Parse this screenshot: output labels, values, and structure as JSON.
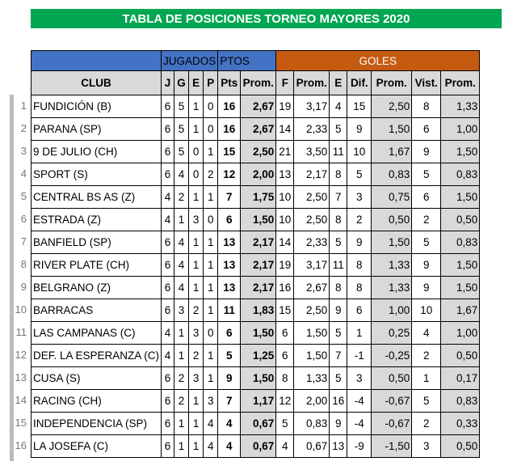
{
  "title": "TABLA DE POSICIONES TORNEO MAYORES 2020",
  "group_headers": {
    "jugados": "JUGADOS",
    "ptos": "PTOS",
    "goles": "GOLES"
  },
  "columns": [
    "CLUB",
    "J",
    "G",
    "E",
    "P",
    "Pts",
    "Prom.",
    "F",
    "Prom.",
    "E",
    "Dif.",
    "Prom.",
    "Vist.",
    "Prom."
  ],
  "rows": [
    {
      "n": "1",
      "club": "FUNDICIÓN (B)",
      "j": "6",
      "g": "5",
      "e": "1",
      "p": "0",
      "pts": "16",
      "prom": "2,67",
      "f": "19",
      "fprom": "3,17",
      "ec": "4",
      "dif": "15",
      "dprom": "2,50",
      "vist": "8",
      "vprom": "1,33"
    },
    {
      "n": "2",
      "club": "PARANA (SP)",
      "j": "6",
      "g": "5",
      "e": "1",
      "p": "0",
      "pts": "16",
      "prom": "2,67",
      "f": "14",
      "fprom": "2,33",
      "ec": "5",
      "dif": "9",
      "dprom": "1,50",
      "vist": "6",
      "vprom": "1,00"
    },
    {
      "n": "3",
      "club": "9 DE JULIO (CH)",
      "j": "6",
      "g": "5",
      "e": "0",
      "p": "1",
      "pts": "15",
      "prom": "2,50",
      "f": "21",
      "fprom": "3,50",
      "ec": "11",
      "dif": "10",
      "dprom": "1,67",
      "vist": "9",
      "vprom": "1,50"
    },
    {
      "n": "4",
      "club": "SPORT (S)",
      "j": "6",
      "g": "4",
      "e": "0",
      "p": "2",
      "pts": "12",
      "prom": "2,00",
      "f": "13",
      "fprom": "2,17",
      "ec": "8",
      "dif": "5",
      "dprom": "0,83",
      "vist": "5",
      "vprom": "0,83"
    },
    {
      "n": "5",
      "club": "CENTRAL BS AS (Z)",
      "j": "4",
      "g": "2",
      "e": "1",
      "p": "1",
      "pts": "7",
      "prom": "1,75",
      "f": "10",
      "fprom": "2,50",
      "ec": "7",
      "dif": "3",
      "dprom": "0,75",
      "vist": "6",
      "vprom": "1,50"
    },
    {
      "n": "6",
      "club": "ESTRADA (Z)",
      "j": "4",
      "g": "1",
      "e": "3",
      "p": "0",
      "pts": "6",
      "prom": "1,50",
      "f": "10",
      "fprom": "2,50",
      "ec": "8",
      "dif": "2",
      "dprom": "0,50",
      "vist": "2",
      "vprom": "0,50"
    },
    {
      "n": "7",
      "club": "BANFIELD (SP)",
      "j": "6",
      "g": "4",
      "e": "1",
      "p": "1",
      "pts": "13",
      "prom": "2,17",
      "f": "14",
      "fprom": "2,33",
      "ec": "5",
      "dif": "9",
      "dprom": "1,50",
      "vist": "5",
      "vprom": "0,83"
    },
    {
      "n": "8",
      "club": "RIVER PLATE (CH)",
      "j": "6",
      "g": "4",
      "e": "1",
      "p": "1",
      "pts": "13",
      "prom": "2,17",
      "f": "19",
      "fprom": "3,17",
      "ec": "11",
      "dif": "8",
      "dprom": "1,33",
      "vist": "9",
      "vprom": "1,50"
    },
    {
      "n": "9",
      "club": "BELGRANO (Z)",
      "j": "6",
      "g": "4",
      "e": "1",
      "p": "1",
      "pts": "13",
      "prom": "2,17",
      "f": "16",
      "fprom": "2,67",
      "ec": "8",
      "dif": "8",
      "dprom": "1,33",
      "vist": "9",
      "vprom": "1,50"
    },
    {
      "n": "10",
      "club": "BARRACAS",
      "j": "6",
      "g": "3",
      "e": "2",
      "p": "1",
      "pts": "11",
      "prom": "1,83",
      "f": "15",
      "fprom": "2,50",
      "ec": "9",
      "dif": "6",
      "dprom": "1,00",
      "vist": "10",
      "vprom": "1,67"
    },
    {
      "n": "11",
      "club": "LAS CAMPANAS (C)",
      "j": "4",
      "g": "1",
      "e": "3",
      "p": "0",
      "pts": "6",
      "prom": "1,50",
      "f": "6",
      "fprom": "1,50",
      "ec": "5",
      "dif": "1",
      "dprom": "0,25",
      "vist": "4",
      "vprom": "1,00"
    },
    {
      "n": "12",
      "club": "DEF. LA ESPERANZA (C)",
      "j": "4",
      "g": "1",
      "e": "2",
      "p": "1",
      "pts": "5",
      "prom": "1,25",
      "f": "6",
      "fprom": "1,50",
      "ec": "7",
      "dif": "-1",
      "dprom": "-0,25",
      "vist": "2",
      "vprom": "0,50"
    },
    {
      "n": "13",
      "club": "CUSA (S)",
      "j": "6",
      "g": "2",
      "e": "3",
      "p": "1",
      "pts": "9",
      "prom": "1,50",
      "f": "8",
      "fprom": "1,33",
      "ec": "5",
      "dif": "3",
      "dprom": "0,50",
      "vist": "1",
      "vprom": "0,17"
    },
    {
      "n": "14",
      "club": "RACING (CH)",
      "j": "6",
      "g": "2",
      "e": "1",
      "p": "3",
      "pts": "7",
      "prom": "1,17",
      "f": "12",
      "fprom": "2,00",
      "ec": "16",
      "dif": "-4",
      "dprom": "-0,67",
      "vist": "5",
      "vprom": "0,83"
    },
    {
      "n": "15",
      "club": "INDEPENDENCIA (SP)",
      "j": "6",
      "g": "1",
      "e": "1",
      "p": "4",
      "pts": "4",
      "prom": "0,67",
      "f": "5",
      "fprom": "0,83",
      "ec": "9",
      "dif": "-4",
      "dprom": "-0,67",
      "vist": "2",
      "vprom": "0,33"
    },
    {
      "n": "16",
      "club": "LA JOSEFA (C)",
      "j": "6",
      "g": "1",
      "e": "1",
      "p": "4",
      "pts": "4",
      "prom": "0,67",
      "f": "4",
      "fprom": "0,67",
      "ec": "13",
      "dif": "-9",
      "dprom": "-1,50",
      "vist": "3",
      "vprom": "0,50"
    }
  ],
  "colors": {
    "title_bg": "#00a651",
    "header_blue": "#4472c4",
    "header_orange": "#c55a11",
    "shade": "#d9d9d9"
  }
}
